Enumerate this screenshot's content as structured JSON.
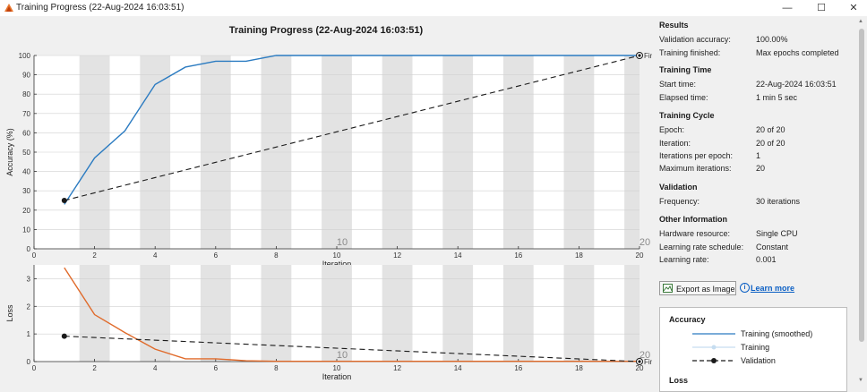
{
  "window": {
    "title": "Training Progress (22-Aug-2024 16:03:51)",
    "minimize_label": "—",
    "maximize_label": "☐",
    "close_label": "✕"
  },
  "plot_title": "Training Progress (22-Aug-2024 16:03:51)",
  "colors": {
    "accuracy": "#2b7bc1",
    "loss": "#e06a2a",
    "validation": "#1a1a1a",
    "band": "#e3e3e3",
    "smoothed_light": "#c6ddf0"
  },
  "chart_data": [
    {
      "type": "line",
      "name": "accuracy",
      "xlabel": "Iteration",
      "ylabel": "Accuracy (%)",
      "xlim": [
        0,
        20
      ],
      "ylim": [
        0,
        100
      ],
      "xticks": [
        0,
        2,
        4,
        6,
        8,
        10,
        12,
        14,
        16,
        18,
        20
      ],
      "yticks": [
        0,
        10,
        20,
        30,
        40,
        50,
        60,
        70,
        80,
        90,
        100
      ],
      "epoch_labels": [
        {
          "x": 10,
          "text": "10"
        },
        {
          "x": 20,
          "text": "20"
        }
      ],
      "series": [
        {
          "name": "Training (smoothed)",
          "x": [
            1,
            2,
            3,
            4,
            5,
            6,
            7,
            8,
            9,
            10,
            11,
            12,
            13,
            14,
            15,
            16,
            17,
            18,
            19,
            20
          ],
          "values": [
            23,
            47,
            61,
            85,
            94,
            97,
            97,
            100,
            100,
            100,
            100,
            100,
            100,
            100,
            100,
            100,
            100,
            100,
            100,
            100
          ]
        },
        {
          "name": "Validation",
          "x": [
            1,
            20
          ],
          "values": [
            25,
            100
          ]
        }
      ],
      "final_label": "Final"
    },
    {
      "type": "line",
      "name": "loss",
      "xlabel": "Iteration",
      "ylabel": "Loss",
      "xlim": [
        0,
        20
      ],
      "ylim": [
        0,
        3.5
      ],
      "xticks": [
        0,
        2,
        4,
        6,
        8,
        10,
        12,
        14,
        16,
        18,
        20
      ],
      "yticks": [
        0,
        1,
        2,
        3
      ],
      "epoch_labels": [
        {
          "x": 10,
          "text": "10"
        },
        {
          "x": 20,
          "text": "20"
        }
      ],
      "series": [
        {
          "name": "Training (smoothed)",
          "x": [
            1,
            2,
            3,
            4,
            5,
            6,
            7,
            8,
            9,
            10,
            11,
            12,
            13,
            14,
            15,
            16,
            17,
            18,
            19,
            20
          ],
          "values": [
            3.4,
            1.7,
            1.05,
            0.45,
            0.1,
            0.1,
            0.03,
            0.01,
            0.01,
            0.01,
            0.01,
            0.01,
            0.01,
            0.01,
            0.01,
            0.01,
            0.01,
            0.01,
            0.01,
            0.01
          ]
        },
        {
          "name": "Validation",
          "x": [
            1,
            20
          ],
          "values": [
            0.92,
            0.0
          ]
        }
      ],
      "final_label": "Final"
    }
  ],
  "results": {
    "title": "Results",
    "rows": [
      {
        "label": "Validation accuracy:",
        "value": "100.00%"
      },
      {
        "label": "Training finished:",
        "value": "Max epochs completed"
      }
    ]
  },
  "training_time": {
    "title": "Training Time",
    "rows": [
      {
        "label": "Start time:",
        "value": "22-Aug-2024 16:03:51"
      },
      {
        "label": "Elapsed time:",
        "value": "1 min 5 sec"
      }
    ]
  },
  "training_cycle": {
    "title": "Training Cycle",
    "rows": [
      {
        "label": "Epoch:",
        "value": "20 of 20"
      },
      {
        "label": "Iteration:",
        "value": "20 of 20"
      },
      {
        "label": "Iterations per epoch:",
        "value": "1"
      },
      {
        "label": "Maximum iterations:",
        "value": "20"
      }
    ]
  },
  "validation": {
    "title": "Validation",
    "rows": [
      {
        "label": "Frequency:",
        "value": "30 iterations"
      }
    ]
  },
  "other_info": {
    "title": "Other Information",
    "rows": [
      {
        "label": "Hardware resource:",
        "value": "Single CPU"
      },
      {
        "label": "Learning rate schedule:",
        "value": "Constant"
      },
      {
        "label": "Learning rate:",
        "value": "0.001"
      }
    ]
  },
  "export_label": "Export as Image",
  "learn_more_label": "Learn more",
  "legend": {
    "accuracy_title": "Accuracy",
    "items": [
      "Training (smoothed)",
      "Training",
      "Validation"
    ],
    "loss_title": "Loss"
  }
}
